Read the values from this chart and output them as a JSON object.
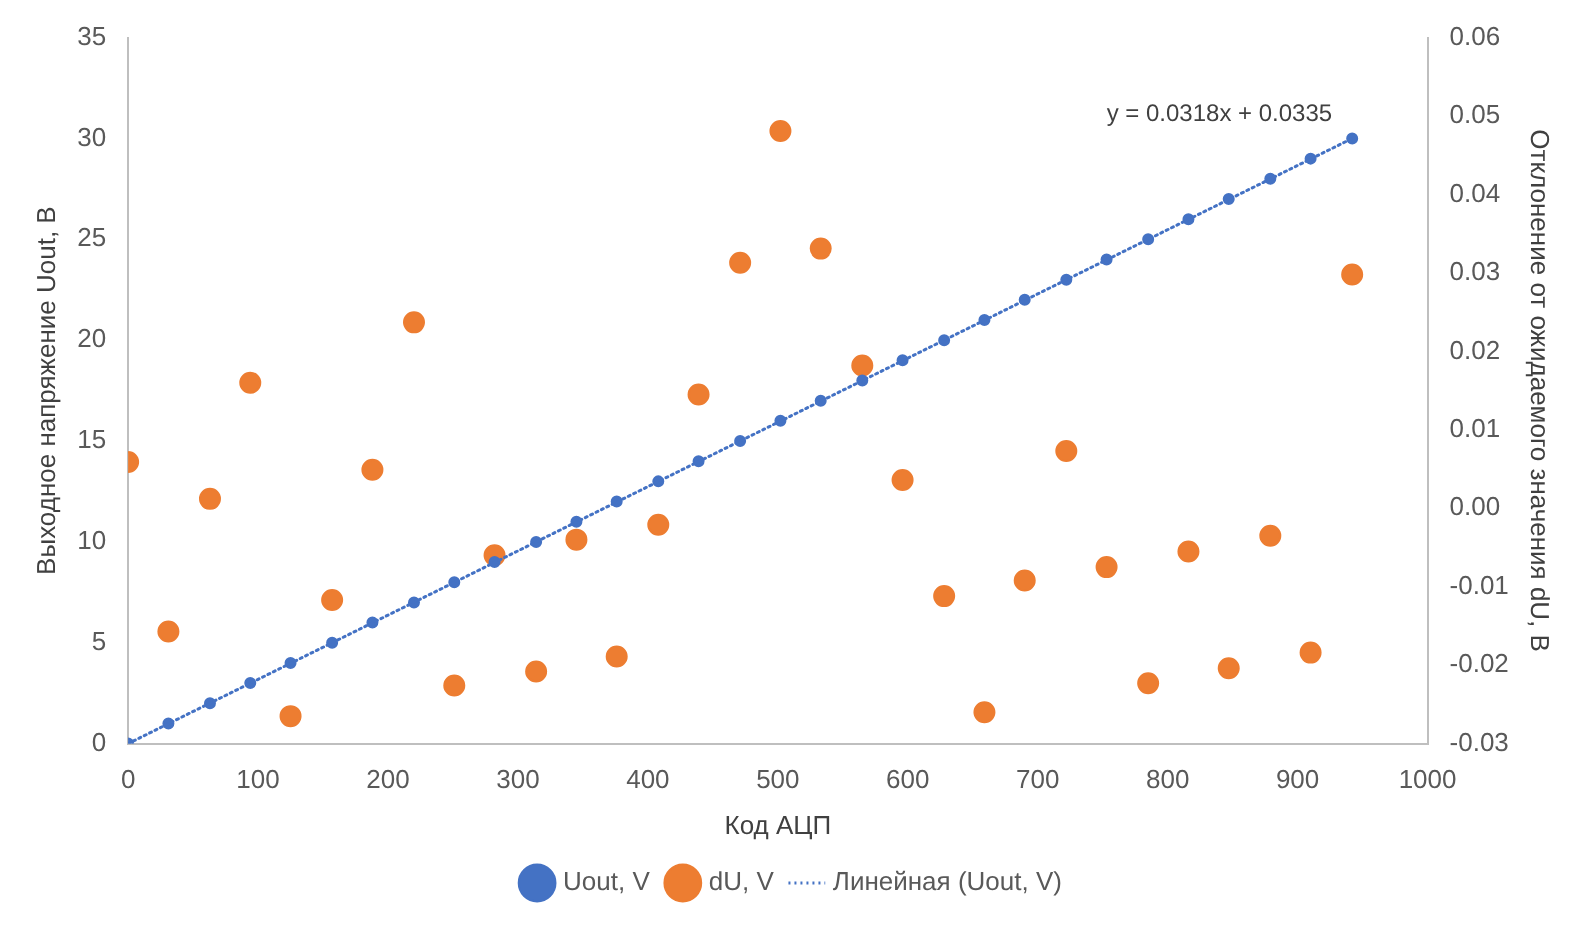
{
  "chart_data": {
    "type": "scatter",
    "xlabel": "Код АЦП",
    "ylabel": "Выходное напряжение Uout, В",
    "y2label": "Отклонение от ожидаемого значения dU, В",
    "x": [
      0,
      31,
      63,
      94,
      125,
      157,
      188,
      220,
      251,
      282,
      314,
      345,
      376,
      408,
      439,
      471,
      502,
      533,
      565,
      596,
      628,
      659,
      690,
      722,
      753,
      785,
      816,
      847,
      879,
      910,
      942
    ],
    "series": [
      {
        "name": "Uout, V",
        "color": "#4472c4",
        "values": [
          0,
          1,
          2,
          3,
          4,
          5,
          6,
          7,
          8,
          9,
          10,
          11,
          12,
          13,
          14,
          15,
          16,
          17,
          18,
          19,
          20,
          21,
          22,
          23,
          24,
          25,
          26,
          27,
          28,
          29,
          30
        ]
      },
      {
        "name": "dU, V",
        "color": "#ed7d31",
        "axis": "y2",
        "values": [
          0.0059,
          -0.0157,
          0.0012,
          0.016,
          -0.0265,
          -0.0117,
          0.0049,
          0.0237,
          -0.0226,
          -0.006,
          -0.0208,
          -0.004,
          -0.0189,
          -0.0021,
          0.0145,
          0.0313,
          0.0481,
          0.0331,
          0.0182,
          0.0036,
          -0.0112,
          -0.026,
          -0.0092,
          0.0073,
          -0.0075,
          -0.0223,
          -0.0055,
          -0.0204,
          -0.0035,
          -0.0184,
          0.0298
        ]
      },
      {
        "name": "Линейная (Uout, V)",
        "type": "line",
        "color": "#4472c4",
        "line_style": "dotted",
        "marker": "none",
        "x": [
          0,
          942
        ],
        "values": [
          0,
          30
        ]
      }
    ],
    "annotations": [
      "y = 0.0318x + 0.0335"
    ],
    "xlim": [
      0,
      1000
    ],
    "xticks": [
      0,
      100,
      200,
      300,
      400,
      500,
      600,
      700,
      800,
      900,
      1000
    ],
    "ylim": [
      0,
      35
    ],
    "yticks": [
      0,
      5,
      10,
      15,
      20,
      25,
      30,
      35
    ],
    "y2lim": [
      -0.03,
      0.06
    ],
    "y2ticks": [
      -0.03,
      -0.02,
      -0.01,
      {
        "value": 0,
        "label": "0.00"
      },
      0.01,
      0.02,
      0.03,
      0.04,
      0.05,
      0.06
    ],
    "marker": "circle",
    "legend": "bottom"
  }
}
